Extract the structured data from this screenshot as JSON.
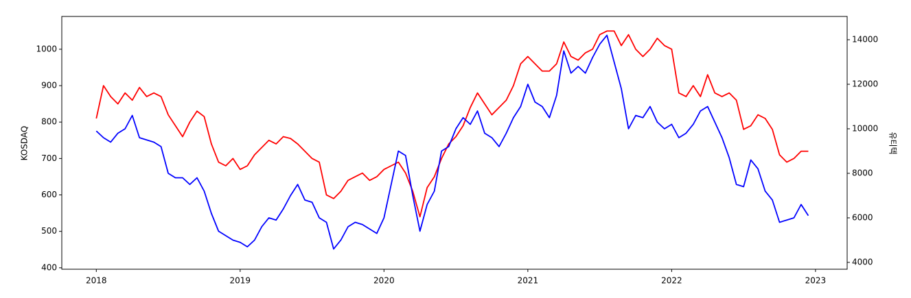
{
  "chart_data": {
    "type": "line",
    "ylabel": "KOSDAQ",
    "y2label": "유티텍",
    "x": [
      2018.0,
      2018.05,
      2018.1,
      2018.15,
      2018.2,
      2018.25,
      2018.3,
      2018.35,
      2018.4,
      2018.45,
      2018.5,
      2018.55,
      2018.6,
      2018.65,
      2018.7,
      2018.75,
      2018.8,
      2018.85,
      2018.9,
      2018.95,
      2019.0,
      2019.05,
      2019.1,
      2019.15,
      2019.2,
      2019.25,
      2019.3,
      2019.35,
      2019.4,
      2019.45,
      2019.5,
      2019.55,
      2019.6,
      2019.65,
      2019.7,
      2019.75,
      2019.8,
      2019.85,
      2019.9,
      2019.95,
      2020.0,
      2020.05,
      2020.1,
      2020.15,
      2020.2,
      2020.25,
      2020.3,
      2020.35,
      2020.4,
      2020.45,
      2020.5,
      2020.55,
      2020.6,
      2020.65,
      2020.7,
      2020.75,
      2020.8,
      2020.85,
      2020.9,
      2020.95,
      2021.0,
      2021.05,
      2021.1,
      2021.15,
      2021.2,
      2021.25,
      2021.3,
      2021.35,
      2021.4,
      2021.45,
      2021.5,
      2021.55,
      2021.6,
      2021.65,
      2021.7,
      2021.75,
      2021.8,
      2021.85,
      2021.9,
      2021.95,
      2022.0,
      2022.05,
      2022.1,
      2022.15,
      2022.2,
      2022.25,
      2022.3,
      2022.35,
      2022.4,
      2022.45,
      2022.5,
      2022.55,
      2022.6,
      2022.65,
      2022.7,
      2022.75,
      2022.8,
      2022.85,
      2022.9,
      2022.95
    ],
    "series": [
      {
        "name": "KOSDAQ",
        "color": "red",
        "axis": "y",
        "values": [
          810,
          900,
          870,
          850,
          880,
          860,
          895,
          870,
          880,
          870,
          820,
          790,
          760,
          800,
          830,
          815,
          740,
          690,
          680,
          700,
          670,
          680,
          710,
          730,
          750,
          740,
          760,
          755,
          740,
          720,
          700,
          690,
          600,
          590,
          610,
          640,
          650,
          660,
          640,
          650,
          670,
          680,
          690,
          660,
          610,
          540,
          620,
          650,
          700,
          740,
          760,
          790,
          840,
          880,
          850,
          820,
          840,
          860,
          900,
          960,
          980,
          960,
          940,
          940,
          960,
          1020,
          980,
          970,
          990,
          1000,
          1040,
          1050,
          1050,
          1010,
          1040,
          1000,
          980,
          1000,
          1030,
          1010,
          1000,
          880,
          870,
          900,
          870,
          930,
          880,
          870,
          880,
          860,
          780,
          790,
          820,
          810,
          780,
          710,
          690,
          700,
          720,
          720
        ]
      },
      {
        "name": "유티텍",
        "color": "blue",
        "axis": "y2",
        "values": [
          9900,
          9600,
          9400,
          9800,
          10000,
          10600,
          9600,
          9500,
          9400,
          9200,
          8000,
          7800,
          7800,
          7500,
          7800,
          7200,
          6200,
          5400,
          5200,
          5000,
          4900,
          4700,
          5000,
          5600,
          6000,
          5900,
          6400,
          7000,
          7500,
          6800,
          6700,
          6000,
          5800,
          4600,
          5000,
          5600,
          5800,
          5700,
          5500,
          5300,
          6000,
          7500,
          9000,
          8800,
          7000,
          5400,
          6600,
          7200,
          9000,
          9200,
          10000,
          10500,
          10200,
          10800,
          9800,
          9600,
          9200,
          9800,
          10500,
          11000,
          12000,
          11200,
          11000,
          10500,
          11500,
          13500,
          12500,
          12800,
          12500,
          13200,
          13800,
          14200,
          13000,
          11800,
          10000,
          10600,
          10500,
          11000,
          10300,
          10000,
          10200,
          9600,
          9800,
          10200,
          10800,
          11000,
          10300,
          9600,
          8700,
          7500,
          7400,
          8600,
          8200,
          7200,
          6800,
          5800,
          5900,
          6000,
          6600,
          6100
        ]
      }
    ],
    "xlim": [
      2017.76,
      2023.22
    ],
    "xticks": [
      2018,
      2019,
      2020,
      2021,
      2022,
      2023
    ],
    "ylim": [
      396,
      1090
    ],
    "yticks": [
      400,
      500,
      600,
      700,
      800,
      900,
      1000
    ],
    "y2lim": [
      3692,
      15046
    ],
    "y2ticks": [
      4000,
      6000,
      8000,
      10000,
      12000,
      14000
    ]
  }
}
